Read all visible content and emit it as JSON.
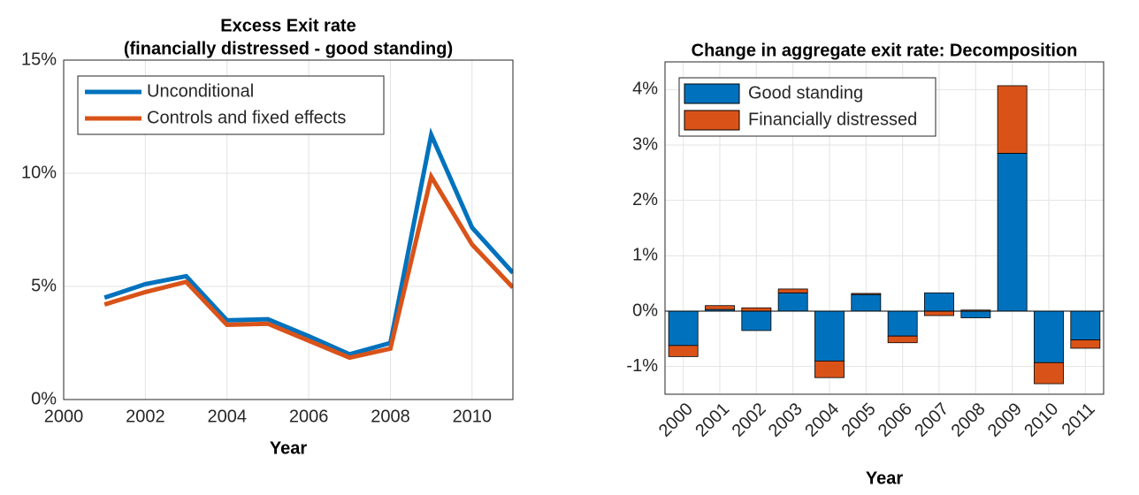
{
  "chart_data": [
    {
      "type": "line",
      "title": [
        "Excess Exit rate",
        "(financially distressed - good standing)"
      ],
      "x": [
        2001,
        2002,
        2003,
        2004,
        2005,
        2006,
        2007,
        2008,
        2009,
        2010,
        2011
      ],
      "series": [
        {
          "name": "Unconditional",
          "color": "#0072BD",
          "values": [
            4.5,
            5.1,
            5.45,
            3.5,
            3.55,
            2.8,
            2.0,
            2.5,
            11.7,
            7.6,
            5.6
          ]
        },
        {
          "name": "Controls and fixed effects",
          "color": "#D95319",
          "values": [
            4.2,
            4.75,
            5.2,
            3.3,
            3.35,
            2.6,
            1.85,
            2.25,
            9.85,
            6.85,
            4.95
          ]
        }
      ],
      "xlim": [
        2000,
        2011
      ],
      "xticks": [
        2000,
        2002,
        2004,
        2006,
        2008,
        2010
      ],
      "ylim": [
        0,
        15
      ],
      "yticks": [
        {
          "value": 0,
          "label": "0%"
        },
        {
          "value": 5,
          "label": "5%"
        },
        {
          "value": 10,
          "label": "10%"
        },
        {
          "value": 15,
          "label": "15%"
        }
      ],
      "xlabel": "Year",
      "grid": true,
      "legend": "upper-left"
    },
    {
      "type": "stacked-bar",
      "title": [
        "Change in aggregate exit rate: Decomposition"
      ],
      "categories": [
        "2000",
        "2001",
        "2002",
        "2003",
        "2004",
        "2005",
        "2006",
        "2007",
        "2008",
        "2009",
        "2010",
        "2011"
      ],
      "series": [
        {
          "name": "Good standing",
          "color": "#0072BD",
          "values": [
            -0.62,
            0.03,
            -0.35,
            0.33,
            -0.9,
            0.3,
            -0.45,
            0.33,
            -0.12,
            2.85,
            -0.93,
            -0.52
          ]
        },
        {
          "name": "Financially distressed",
          "color": "#D95319",
          "values": [
            -0.2,
            0.07,
            0.06,
            0.07,
            -0.3,
            0.02,
            -0.12,
            -0.08,
            0.02,
            1.22,
            -0.38,
            -0.15
          ]
        }
      ],
      "ylim": [
        -1.5,
        4.5
      ],
      "yticks": [
        {
          "value": -1,
          "label": "-1%"
        },
        {
          "value": 0,
          "label": "0%"
        },
        {
          "value": 1,
          "label": "1%"
        },
        {
          "value": 2,
          "label": "2%"
        },
        {
          "value": 3,
          "label": "3%"
        },
        {
          "value": 4,
          "label": "4%"
        }
      ],
      "xlabel": "Year",
      "grid": true,
      "legend": "upper-left"
    }
  ]
}
